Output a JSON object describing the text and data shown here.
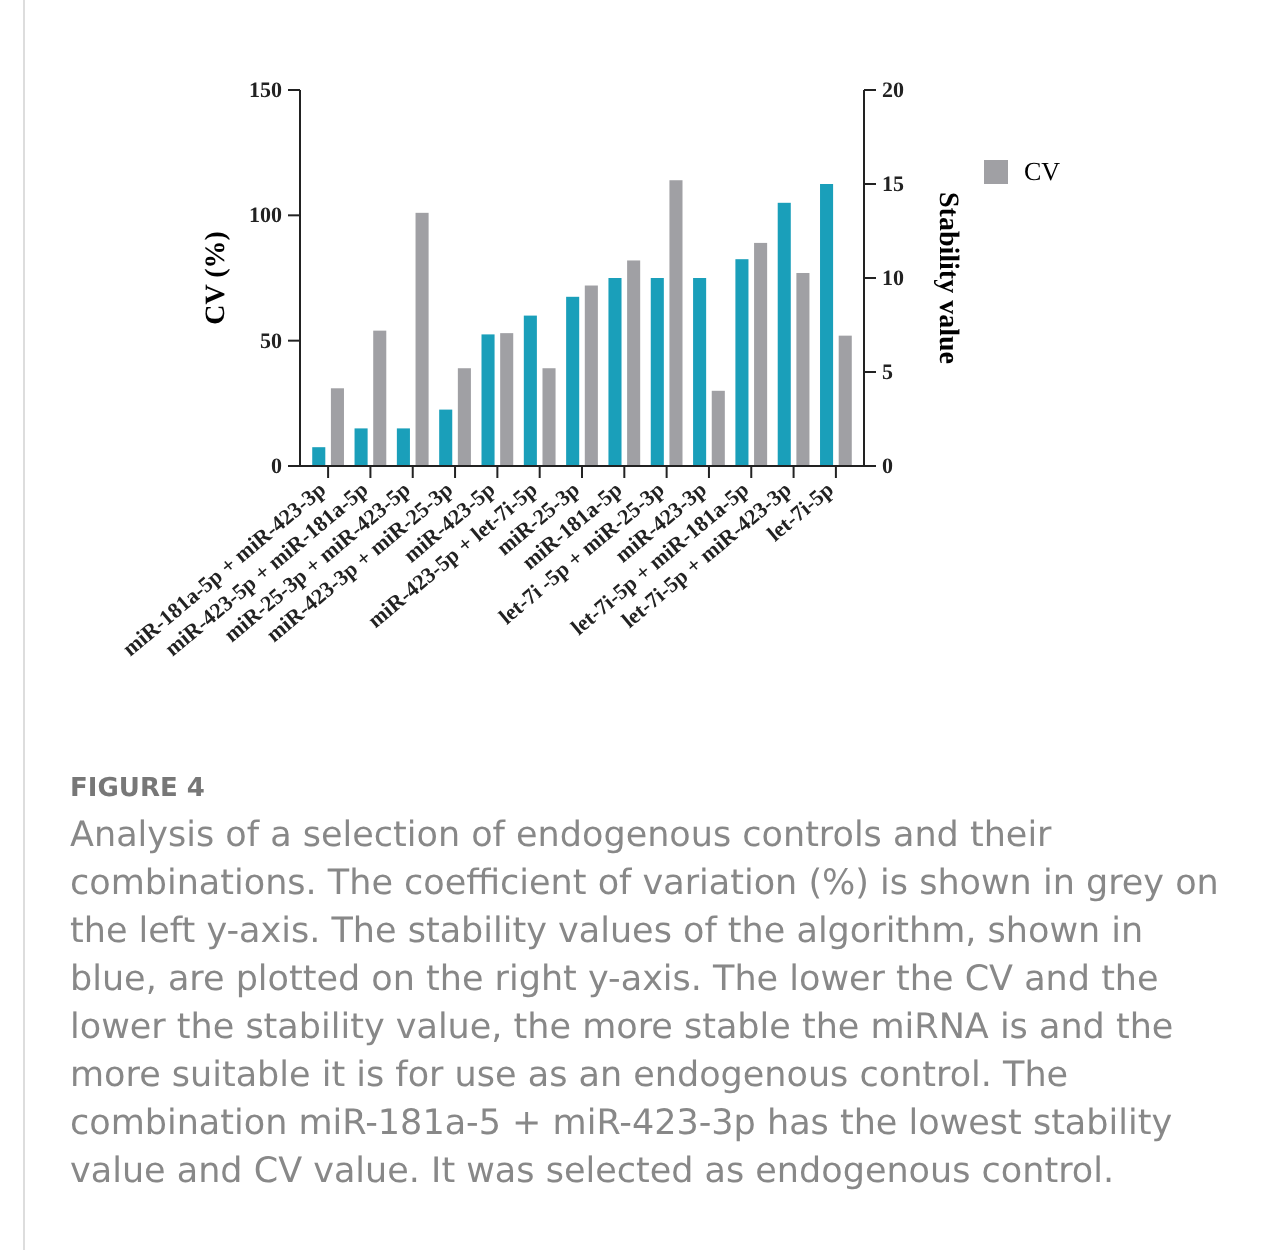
{
  "chart_data": {
    "type": "bar",
    "categories": [
      "miR-181a-5p + miR-423-3p",
      "miR-423-5p + miR-181a-5p",
      "miR-25-3p + miR-423-5p",
      "miR-423-3p + miR-25-3p",
      "miR-423-5p",
      "miR-423-5p + let-7i-5p",
      "miR-25-3p",
      "miR-181a-5p",
      "let-7i -5p + miR-25-3p",
      "miR-423-3p",
      "let-7i-5p + miR-181a-5p",
      "let-7i-5p + miR-423-3p",
      "let-7i-5p"
    ],
    "series": [
      {
        "color": "#1a9fba",
        "axis": "y2",
        "values": [
          1,
          2,
          2,
          3,
          7,
          8,
          9,
          10,
          10,
          10,
          11,
          14,
          15
        ]
      },
      {
        "name": "CV",
        "color": "#a0a0a4",
        "values": [
          31,
          54,
          101,
          39,
          53,
          39,
          72,
          82,
          114,
          30,
          89,
          77,
          52
        ]
      }
    ],
    "ylabel": "CV (%)",
    "y2label": "Stability value",
    "ylim": [
      0,
      150
    ],
    "yticks": [
      0,
      50,
      100,
      150
    ],
    "y2lim": [
      0,
      20
    ],
    "y2ticks": [
      0,
      5,
      10,
      15,
      20
    ],
    "grid": false,
    "legend": "right",
    "annotations": [
      "FIGURE 4",
      "Analysis of a selection of endogenous controls and their combinations. The coefficient of variation (%) is shown in grey on the left y-axis. The stability values of the algorithm, shown in blue, are plotted on the right y-axis. The lower the CV and the lower the stability value, the more stable the miRNA is and the more suitable it is for use as an endogenous control. The combination miR-181a-5 + miR-423-3p has the lowest stability value and CV value. It was selected as endogenous control."
    ]
  }
}
